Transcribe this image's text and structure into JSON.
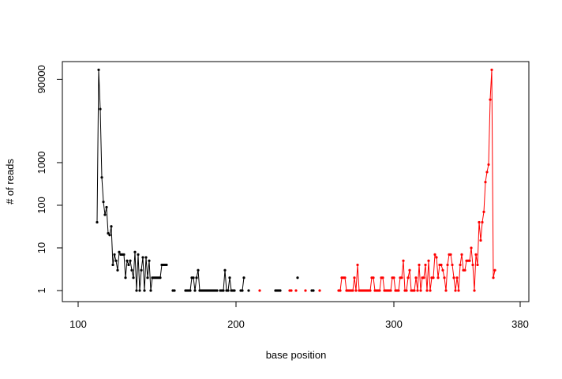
{
  "chart_data": {
    "type": "line",
    "xlabel": "base position",
    "ylabel": "# of reads",
    "log_y": true,
    "xlim": [
      90,
      385.5
    ],
    "xticks": [
      100,
      200,
      300,
      380
    ],
    "ylim": [
      0.55,
      234000
    ],
    "yticks": [
      1,
      10,
      100,
      1000,
      90000
    ],
    "series": [
      {
        "color": "#000000",
        "x": [
          112,
          113,
          114,
          115,
          116,
          117,
          118,
          119,
          120,
          121,
          122,
          123,
          124,
          125,
          126,
          127,
          128,
          129,
          130,
          131,
          132,
          133,
          134,
          135,
          136,
          137,
          138,
          139,
          140,
          141,
          142,
          143,
          144,
          145,
          146,
          147,
          148,
          149,
          150,
          151,
          152,
          153,
          154,
          155,
          156,
          157,
          160,
          161,
          162,
          168,
          169,
          170,
          171,
          172,
          173,
          174,
          175,
          176,
          177,
          178,
          179,
          180,
          181,
          182,
          183,
          184,
          185,
          186,
          187,
          188,
          189,
          190,
          191,
          192,
          193,
          194,
          195,
          196,
          197,
          198,
          199,
          200,
          203,
          204,
          205,
          206,
          208,
          209,
          225,
          226,
          227,
          228,
          229,
          239,
          240,
          248,
          249
        ],
        "values": [
          40,
          150000,
          18000,
          450,
          120,
          60,
          90,
          22,
          20,
          32,
          4,
          7,
          5,
          3,
          8,
          7,
          7,
          7,
          2,
          5,
          4,
          5,
          3,
          2,
          8,
          1,
          7,
          1,
          3,
          6,
          1,
          6,
          2,
          5,
          1,
          2,
          2,
          2,
          2,
          2,
          2,
          4,
          4,
          4,
          4,
          null,
          1,
          1,
          null,
          1,
          1,
          1,
          1,
          2,
          2,
          1,
          2,
          3,
          1,
          1,
          1,
          1,
          1,
          1,
          1,
          1,
          1,
          1,
          1,
          1,
          null,
          1,
          1,
          1,
          3,
          1,
          1,
          2,
          1,
          1,
          1,
          null,
          1,
          1,
          2,
          null,
          1,
          null,
          1,
          1,
          1,
          1,
          null,
          2,
          null,
          1,
          1
        ]
      },
      {
        "color": "#ff0000",
        "x": [
          215,
          216,
          234,
          235,
          236,
          238,
          239,
          244,
          245,
          253,
          254,
          265,
          266,
          267,
          268,
          269,
          270,
          271,
          272,
          273,
          274,
          275,
          276,
          277,
          278,
          279,
          280,
          281,
          282,
          283,
          284,
          285,
          286,
          287,
          288,
          289,
          290,
          291,
          292,
          293,
          294,
          295,
          296,
          297,
          298,
          299,
          300,
          301,
          302,
          303,
          304,
          305,
          306,
          307,
          308,
          309,
          310,
          311,
          312,
          313,
          314,
          315,
          316,
          317,
          318,
          319,
          320,
          321,
          322,
          323,
          324,
          325,
          326,
          327,
          328,
          329,
          330,
          331,
          332,
          333,
          334,
          335,
          336,
          337,
          338,
          339,
          340,
          341,
          342,
          343,
          344,
          345,
          346,
          347,
          348,
          349,
          350,
          351,
          352,
          353,
          354,
          355,
          356,
          357,
          358,
          359,
          360,
          361,
          362,
          363,
          364
        ],
        "values": [
          1,
          null,
          1,
          1,
          null,
          1,
          null,
          1,
          null,
          1,
          null,
          1,
          1,
          2,
          2,
          2,
          1,
          1,
          1,
          1,
          1,
          2,
          1,
          4,
          1,
          1,
          1,
          1,
          1,
          1,
          1,
          1,
          2,
          2,
          1,
          1,
          1,
          1,
          2,
          2,
          1,
          1,
          1,
          1,
          1,
          2,
          2,
          1,
          1,
          1,
          2,
          2,
          5,
          1,
          1,
          2,
          3,
          1,
          1,
          1,
          2,
          1,
          4,
          1,
          2,
          2,
          4,
          1,
          5,
          1,
          2,
          2,
          7,
          6,
          2,
          4,
          4,
          3,
          2,
          1,
          4,
          7,
          7,
          4,
          2,
          1,
          2,
          1,
          4,
          7,
          3,
          3,
          5,
          5,
          5,
          10,
          4,
          1,
          7,
          4,
          40,
          15,
          40,
          70,
          350,
          600,
          900,
          30000,
          150000,
          2,
          3
        ]
      }
    ]
  }
}
